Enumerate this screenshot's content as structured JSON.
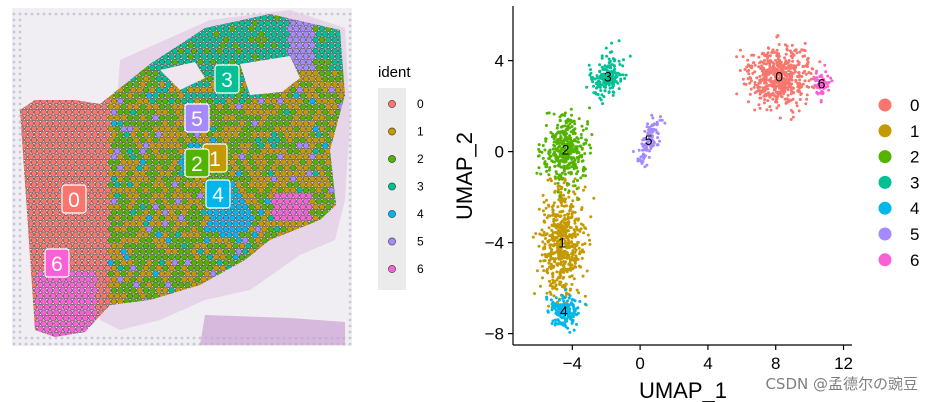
{
  "watermark": "CSDN @孟德尔の豌豆",
  "colors": {
    "0": "#F8766D",
    "1": "#C49A00",
    "2": "#53B400",
    "3": "#00C094",
    "4": "#00B6EB",
    "5": "#A58AFF",
    "6": "#FB61D7"
  },
  "chart_data": [
    {
      "type": "spatial-scatter",
      "legend": {
        "title": "ident",
        "entries": [
          "0",
          "1",
          "2",
          "3",
          "4",
          "5",
          "6"
        ],
        "placement": "right"
      },
      "cluster_labels": [
        "0",
        "1",
        "2",
        "3",
        "4",
        "5",
        "6"
      ]
    },
    {
      "type": "scatter",
      "xlabel": "UMAP_1",
      "ylabel": "UMAP_2",
      "xlim": [
        -7.5,
        12.5
      ],
      "ylim": [
        -8.5,
        6.4
      ],
      "xticks": [
        -4,
        0,
        4,
        8,
        12
      ],
      "xtick_labels": [
        "−4",
        "0",
        "4",
        "8",
        "12"
      ],
      "yticks": [
        -8,
        -4,
        0,
        4
      ],
      "ytick_labels": [
        "−8",
        "−4",
        "0",
        "4"
      ],
      "grid": false,
      "legend": {
        "entries": [
          "0",
          "1",
          "2",
          "3",
          "4",
          "5",
          "6"
        ],
        "placement": "right"
      },
      "clusters": [
        {
          "name": "0",
          "center": [
            8.2,
            3.3
          ]
        },
        {
          "name": "1",
          "center": [
            -4.6,
            -4.0
          ]
        },
        {
          "name": "2",
          "center": [
            -4.4,
            0.1
          ]
        },
        {
          "name": "3",
          "center": [
            -1.9,
            3.3
          ]
        },
        {
          "name": "4",
          "center": [
            -4.5,
            -7.0
          ]
        },
        {
          "name": "5",
          "center": [
            0.5,
            0.5
          ]
        },
        {
          "name": "6",
          "center": [
            10.7,
            3.0
          ]
        }
      ]
    }
  ]
}
